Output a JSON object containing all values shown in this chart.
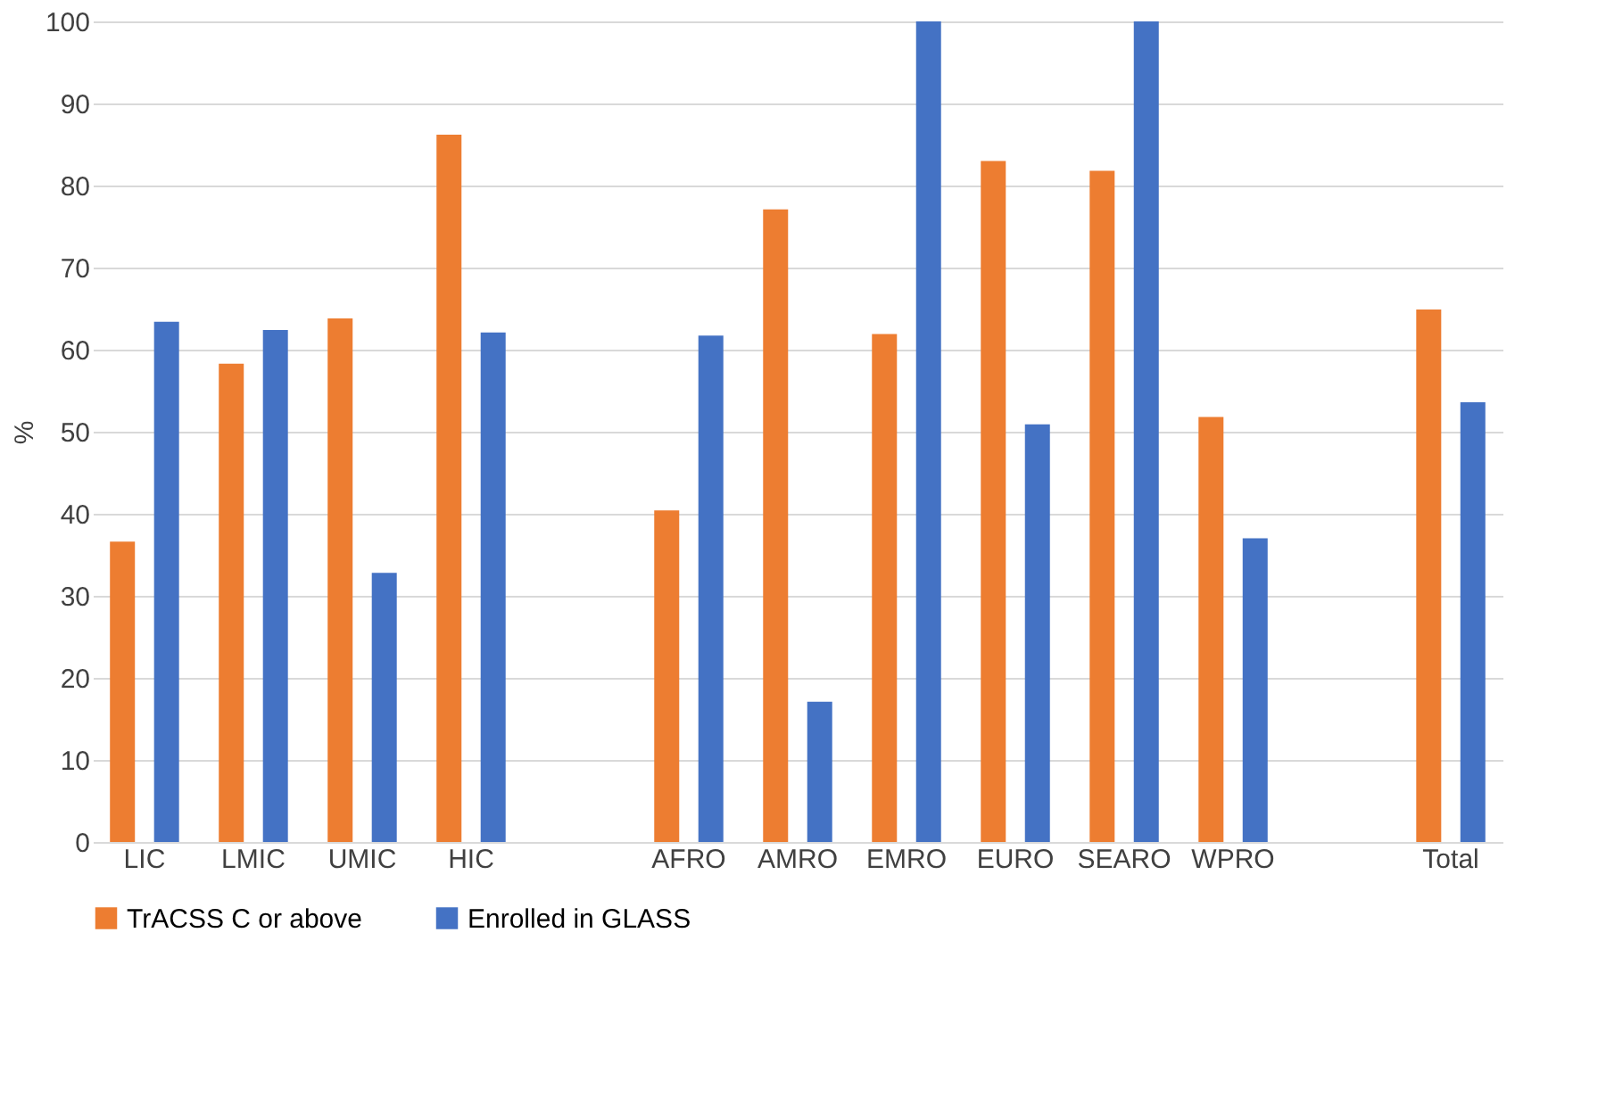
{
  "chart_data": {
    "type": "bar",
    "ylabel": "%",
    "categories": [
      "LIC",
      "LMIC",
      "UMIC",
      "HIC",
      null,
      "AFRO",
      "AMRO",
      "EMRO",
      "EURO",
      "SEARO",
      "WPRO",
      null,
      "Total"
    ],
    "series": [
      {
        "name": "TrACSS C or above",
        "color": "#ed7d31",
        "values": [
          36.6,
          58.3,
          63.8,
          86.2,
          null,
          40.4,
          77.1,
          61.9,
          83.0,
          81.8,
          51.8,
          null,
          64.9
        ]
      },
      {
        "name": "Enrolled in GLASS",
        "color": "#4472c4",
        "values": [
          63.4,
          62.4,
          32.8,
          62.1,
          null,
          61.7,
          17.1,
          100,
          50.9,
          100,
          37.0,
          null,
          53.6
        ]
      }
    ],
    "ylim": [
      0,
      100
    ],
    "yticks": [
      0,
      10,
      20,
      30,
      40,
      50,
      60,
      70,
      80,
      90,
      100
    ],
    "grid": "y",
    "legend": "bottom"
  }
}
